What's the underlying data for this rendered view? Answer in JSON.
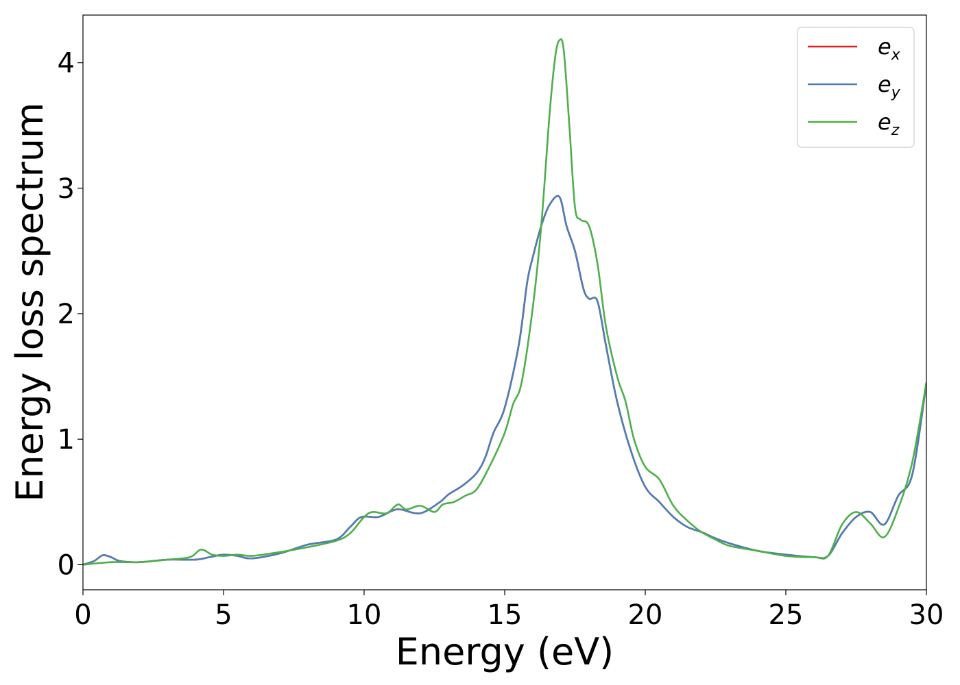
{
  "chart_data": {
    "type": "line",
    "title": "",
    "xlabel": "Energy (eV)",
    "ylabel": "Energy loss spectrum",
    "xlim": [
      0,
      30
    ],
    "ylim": [
      -0.2,
      4.38
    ],
    "xticks": [
      0,
      5,
      10,
      15,
      20,
      25,
      30
    ],
    "xtick_labels": [
      "0",
      "5",
      "10",
      "15",
      "20",
      "25",
      "30"
    ],
    "yticks": [
      0,
      1,
      2,
      3,
      4
    ],
    "ytick_labels": [
      "0",
      "1",
      "2",
      "3",
      "4"
    ],
    "grid": false,
    "legend_position": "top-right",
    "series": [
      {
        "name": "e_x",
        "legend_base": "e",
        "legend_sub": "x",
        "color": "#e41a1c",
        "points": [
          [
            0,
            0
          ],
          [
            0.4,
            0.03
          ],
          [
            0.7,
            0.075
          ],
          [
            1.0,
            0.06
          ],
          [
            1.3,
            0.03
          ],
          [
            2.0,
            0.02
          ],
          [
            3.0,
            0.04
          ],
          [
            4.0,
            0.04
          ],
          [
            4.5,
            0.06
          ],
          [
            5.0,
            0.08
          ],
          [
            5.5,
            0.07
          ],
          [
            6.0,
            0.05
          ],
          [
            7.0,
            0.09
          ],
          [
            8.0,
            0.16
          ],
          [
            9.0,
            0.2
          ],
          [
            9.5,
            0.3
          ],
          [
            9.9,
            0.38
          ],
          [
            10.5,
            0.38
          ],
          [
            11.0,
            0.43
          ],
          [
            11.3,
            0.44
          ],
          [
            12.0,
            0.41
          ],
          [
            12.7,
            0.5
          ],
          [
            13.0,
            0.56
          ],
          [
            13.5,
            0.63
          ],
          [
            14.0,
            0.73
          ],
          [
            14.3,
            0.85
          ],
          [
            14.6,
            1.05
          ],
          [
            15.0,
            1.25
          ],
          [
            15.5,
            1.75
          ],
          [
            15.8,
            2.25
          ],
          [
            16.0,
            2.45
          ],
          [
            16.3,
            2.7
          ],
          [
            16.6,
            2.87
          ],
          [
            16.95,
            2.93
          ],
          [
            17.2,
            2.7
          ],
          [
            17.5,
            2.5
          ],
          [
            17.8,
            2.2
          ],
          [
            18.0,
            2.12
          ],
          [
            18.3,
            2.1
          ],
          [
            18.6,
            1.75
          ],
          [
            19.0,
            1.3
          ],
          [
            19.5,
            0.9
          ],
          [
            20.0,
            0.62
          ],
          [
            20.5,
            0.5
          ],
          [
            21.0,
            0.38
          ],
          [
            21.5,
            0.3
          ],
          [
            22.0,
            0.26
          ],
          [
            22.5,
            0.21
          ],
          [
            23.0,
            0.17
          ],
          [
            24.0,
            0.11
          ],
          [
            25.0,
            0.08
          ],
          [
            26.0,
            0.06
          ],
          [
            26.5,
            0.07
          ],
          [
            27.0,
            0.25
          ],
          [
            27.5,
            0.38
          ],
          [
            28.0,
            0.42
          ],
          [
            28.5,
            0.32
          ],
          [
            29.0,
            0.55
          ],
          [
            29.5,
            0.72
          ],
          [
            30.0,
            1.45
          ]
        ]
      },
      {
        "name": "e_y",
        "legend_base": "e",
        "legend_sub": "y",
        "color": "#4a7fb5",
        "points": [
          [
            0,
            0
          ],
          [
            0.4,
            0.03
          ],
          [
            0.7,
            0.075
          ],
          [
            1.0,
            0.06
          ],
          [
            1.3,
            0.03
          ],
          [
            2.0,
            0.02
          ],
          [
            3.0,
            0.04
          ],
          [
            4.0,
            0.04
          ],
          [
            4.5,
            0.06
          ],
          [
            5.0,
            0.08
          ],
          [
            5.5,
            0.07
          ],
          [
            6.0,
            0.05
          ],
          [
            7.0,
            0.09
          ],
          [
            8.0,
            0.16
          ],
          [
            9.0,
            0.2
          ],
          [
            9.5,
            0.3
          ],
          [
            9.9,
            0.38
          ],
          [
            10.5,
            0.38
          ],
          [
            11.0,
            0.43
          ],
          [
            11.3,
            0.44
          ],
          [
            12.0,
            0.41
          ],
          [
            12.7,
            0.5
          ],
          [
            13.0,
            0.56
          ],
          [
            13.5,
            0.63
          ],
          [
            14.0,
            0.73
          ],
          [
            14.3,
            0.85
          ],
          [
            14.6,
            1.05
          ],
          [
            15.0,
            1.25
          ],
          [
            15.5,
            1.75
          ],
          [
            15.8,
            2.25
          ],
          [
            16.0,
            2.45
          ],
          [
            16.3,
            2.7
          ],
          [
            16.6,
            2.87
          ],
          [
            16.95,
            2.93
          ],
          [
            17.2,
            2.7
          ],
          [
            17.5,
            2.5
          ],
          [
            17.8,
            2.2
          ],
          [
            18.0,
            2.12
          ],
          [
            18.3,
            2.1
          ],
          [
            18.6,
            1.75
          ],
          [
            19.0,
            1.3
          ],
          [
            19.5,
            0.9
          ],
          [
            20.0,
            0.62
          ],
          [
            20.5,
            0.5
          ],
          [
            21.0,
            0.38
          ],
          [
            21.5,
            0.3
          ],
          [
            22.0,
            0.26
          ],
          [
            22.5,
            0.21
          ],
          [
            23.0,
            0.17
          ],
          [
            24.0,
            0.11
          ],
          [
            25.0,
            0.08
          ],
          [
            26.0,
            0.06
          ],
          [
            26.5,
            0.07
          ],
          [
            27.0,
            0.25
          ],
          [
            27.5,
            0.38
          ],
          [
            28.0,
            0.42
          ],
          [
            28.5,
            0.32
          ],
          [
            29.0,
            0.55
          ],
          [
            29.5,
            0.72
          ],
          [
            30.0,
            1.45
          ]
        ]
      },
      {
        "name": "e_z",
        "legend_base": "e",
        "legend_sub": "z",
        "color": "#4daf4a",
        "points": [
          [
            0,
            0
          ],
          [
            1.0,
            0.02
          ],
          [
            2.0,
            0.02
          ],
          [
            3.0,
            0.04
          ],
          [
            3.8,
            0.06
          ],
          [
            4.2,
            0.12
          ],
          [
            4.6,
            0.08
          ],
          [
            5.0,
            0.07
          ],
          [
            5.5,
            0.08
          ],
          [
            6.0,
            0.07
          ],
          [
            7.0,
            0.1
          ],
          [
            8.0,
            0.14
          ],
          [
            9.0,
            0.19
          ],
          [
            9.5,
            0.25
          ],
          [
            10.0,
            0.38
          ],
          [
            10.3,
            0.42
          ],
          [
            10.8,
            0.41
          ],
          [
            11.2,
            0.48
          ],
          [
            11.5,
            0.44
          ],
          [
            12.0,
            0.47
          ],
          [
            12.5,
            0.42
          ],
          [
            12.8,
            0.48
          ],
          [
            13.2,
            0.5
          ],
          [
            13.6,
            0.55
          ],
          [
            14.0,
            0.6
          ],
          [
            14.5,
            0.8
          ],
          [
            15.0,
            1.05
          ],
          [
            15.3,
            1.28
          ],
          [
            15.6,
            1.45
          ],
          [
            16.0,
            2.05
          ],
          [
            16.3,
            2.7
          ],
          [
            16.6,
            3.6
          ],
          [
            16.8,
            4.05
          ],
          [
            16.95,
            4.18
          ],
          [
            17.1,
            4.1
          ],
          [
            17.3,
            3.5
          ],
          [
            17.5,
            2.85
          ],
          [
            17.7,
            2.75
          ],
          [
            18.0,
            2.7
          ],
          [
            18.3,
            2.4
          ],
          [
            18.6,
            1.9
          ],
          [
            19.0,
            1.5
          ],
          [
            19.3,
            1.3
          ],
          [
            19.6,
            1.0
          ],
          [
            20.0,
            0.78
          ],
          [
            20.5,
            0.68
          ],
          [
            21.0,
            0.47
          ],
          [
            21.5,
            0.35
          ],
          [
            22.0,
            0.26
          ],
          [
            22.5,
            0.2
          ],
          [
            23.0,
            0.15
          ],
          [
            24.0,
            0.11
          ],
          [
            25.0,
            0.07
          ],
          [
            26.0,
            0.06
          ],
          [
            26.5,
            0.07
          ],
          [
            27.0,
            0.32
          ],
          [
            27.5,
            0.42
          ],
          [
            28.0,
            0.33
          ],
          [
            28.5,
            0.22
          ],
          [
            29.0,
            0.45
          ],
          [
            29.5,
            0.82
          ],
          [
            30.0,
            1.45
          ]
        ]
      }
    ]
  }
}
